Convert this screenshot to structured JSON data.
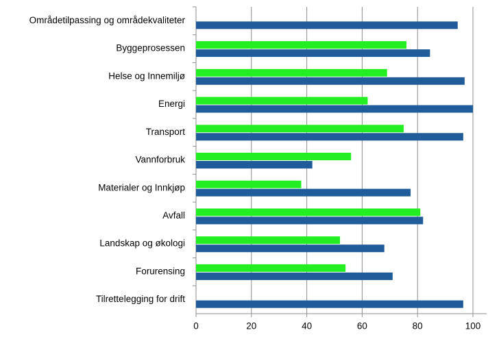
{
  "chart_data": {
    "type": "hbar",
    "categories": [
      "Områdetilpassing og områdekvaliteter",
      "Byggeprosessen",
      "Helse og Innemiljø",
      "Energi",
      "Transport",
      "Vannforbruk",
      "Materialer og Innkjøp",
      "Avfall",
      "Landskap og økologi",
      "Forurensing",
      "Tilrettelegging for drift"
    ],
    "series": [
      {
        "color": "#22ee22",
        "values": [
          null,
          76,
          69,
          62,
          75,
          56,
          38,
          81,
          52,
          54,
          null
        ]
      },
      {
        "color": "#1f5c99",
        "values": [
          94.5,
          84.5,
          97,
          100,
          96.5,
          42,
          77.5,
          82,
          68,
          71,
          96.5
        ]
      }
    ],
    "xlim": [
      0,
      100
    ],
    "xticks": [
      0,
      20,
      40,
      60,
      80,
      100
    ],
    "grid": true
  }
}
